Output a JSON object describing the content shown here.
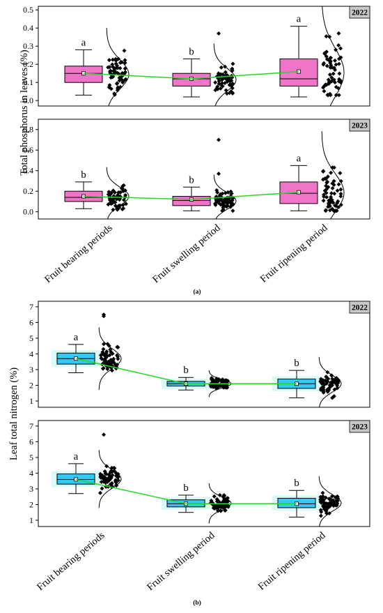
{
  "chart_data": [
    {
      "type": "box",
      "panel_id": "a",
      "caption": "(a)",
      "ylabel": "Total phosphorus in leaves (%)",
      "categories": [
        "Fruit bearing periods",
        "Fruit swelling period",
        "Fruit ripening period"
      ],
      "box_color": "#f075c8",
      "mean_line_color": "#22d822",
      "subplots": [
        {
          "year": "2022",
          "ylim": [
            -0.03,
            0.52
          ],
          "yticks": [
            0.0,
            0.1,
            0.2,
            0.3,
            0.4,
            0.5
          ],
          "yticklabels": [
            "0.0",
            "0.1",
            "0.2",
            "0.3",
            "0.4",
            "0.5"
          ],
          "letters": [
            "a",
            "b",
            "a"
          ],
          "boxes": [
            {
              "whislo": 0.03,
              "q1": 0.1,
              "med": 0.15,
              "q3": 0.19,
              "whishi": 0.28,
              "mean": 0.15
            },
            {
              "whislo": 0.02,
              "q1": 0.08,
              "med": 0.12,
              "q3": 0.15,
              "whishi": 0.23,
              "mean": 0.12
            },
            {
              "whislo": 0.02,
              "q1": 0.08,
              "med": 0.12,
              "q3": 0.23,
              "whishi": 0.41,
              "mean": 0.16
            }
          ],
          "outliers": [
            [],
            [
              0.37
            ],
            []
          ],
          "points_range": [
            [
              0.03,
              0.28
            ],
            [
              0.02,
              0.23
            ],
            [
              0.03,
              0.41
            ]
          ],
          "n_points": 60
        },
        {
          "year": "2023",
          "ylim": [
            -0.07,
            0.9
          ],
          "yticks": [
            0.0,
            0.2,
            0.4,
            0.6,
            0.8
          ],
          "yticklabels": [
            "0.0",
            "0.2",
            "0.4",
            "0.6",
            "0.8"
          ],
          "letters": [
            "b",
            "b",
            "a"
          ],
          "boxes": [
            {
              "whislo": 0.03,
              "q1": 0.1,
              "med": 0.14,
              "q3": 0.2,
              "whishi": 0.29,
              "mean": 0.15
            },
            {
              "whislo": 0.01,
              "q1": 0.06,
              "med": 0.11,
              "q3": 0.15,
              "whishi": 0.24,
              "mean": 0.12
            },
            {
              "whislo": 0.01,
              "q1": 0.08,
              "med": 0.18,
              "q3": 0.29,
              "whishi": 0.45,
              "mean": 0.19
            }
          ],
          "outliers": [
            [],
            [
              0.37,
              0.7
            ],
            []
          ],
          "points_range": [
            [
              0.02,
              0.28
            ],
            [
              0.01,
              0.24
            ],
            [
              0.01,
              0.43
            ]
          ],
          "n_points": 60
        }
      ]
    },
    {
      "type": "box",
      "panel_id": "b",
      "caption": "(b)",
      "ylabel": "Leaf total nitrogen (%)",
      "categories": [
        "Fruit bearing periods",
        "Fruit swelling period",
        "Fruit ripening period"
      ],
      "box_color": "#33c9f3",
      "mean_line_color": "#22d822",
      "subplots": [
        {
          "year": "2022",
          "ylim": [
            0.6,
            7.35
          ],
          "yticks": [
            1,
            2,
            3,
            4,
            5,
            6,
            7
          ],
          "yticklabels": [
            "1",
            "2",
            "3",
            "4",
            "5",
            "6",
            "7"
          ],
          "letters": [
            "a",
            "b",
            "b"
          ],
          "boxes": [
            {
              "whislo": 2.8,
              "q1": 3.35,
              "med": 3.7,
              "q3": 4.05,
              "whishi": 4.6,
              "mean": 3.7
            },
            {
              "whislo": 1.7,
              "q1": 1.95,
              "med": 2.1,
              "q3": 2.25,
              "whishi": 2.5,
              "mean": 2.1
            },
            {
              "whislo": 1.2,
              "q1": 1.8,
              "med": 2.1,
              "q3": 2.4,
              "whishi": 2.95,
              "mean": 2.1
            }
          ],
          "outliers": [
            [
              6.4,
              6.5
            ],
            [],
            []
          ],
          "points_range": [
            [
              2.2,
              4.7
            ],
            [
              1.6,
              2.6
            ],
            [
              1.1,
              3.3
            ]
          ],
          "n_points": 60
        },
        {
          "year": "2023",
          "ylim": [
            0.6,
            7.35
          ],
          "yticks": [
            1,
            2,
            3,
            4,
            5,
            6,
            7
          ],
          "yticklabels": [
            "1",
            "2",
            "3",
            "4",
            "5",
            "6",
            "7"
          ],
          "letters": [
            "a",
            "b",
            "b"
          ],
          "boxes": [
            {
              "whislo": 2.7,
              "q1": 3.3,
              "med": 3.6,
              "q3": 3.95,
              "whishi": 4.6,
              "mean": 3.6
            },
            {
              "whislo": 1.5,
              "q1": 1.85,
              "med": 2.05,
              "q3": 2.3,
              "whishi": 2.6,
              "mean": 2.05
            },
            {
              "whislo": 1.2,
              "q1": 1.8,
              "med": 2.05,
              "q3": 2.4,
              "whishi": 2.9,
              "mean": 2.05
            }
          ],
          "outliers": [
            [
              6.45
            ],
            [],
            []
          ],
          "points_range": [
            [
              2.1,
              4.5
            ],
            [
              1.6,
              2.7
            ],
            [
              1.1,
              3.3
            ]
          ],
          "n_points": 60
        }
      ]
    }
  ]
}
